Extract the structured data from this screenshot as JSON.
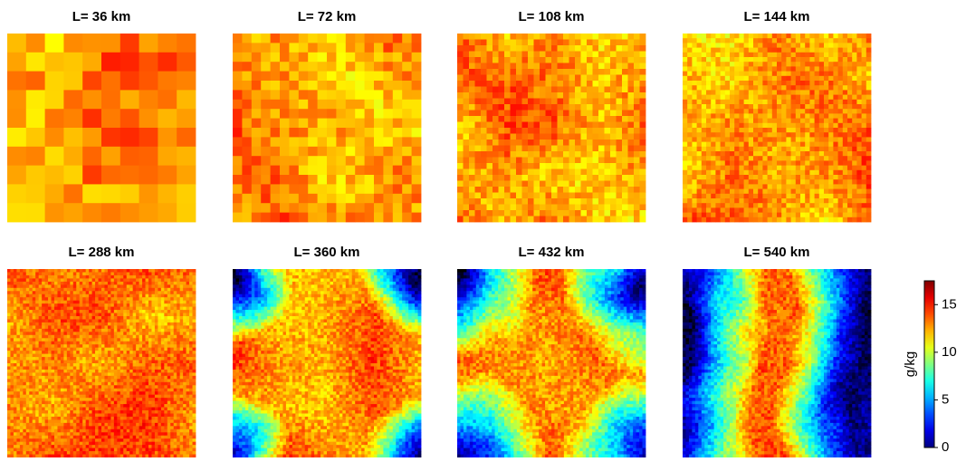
{
  "panels": [
    {
      "title": "L= 36  km"
    },
    {
      "title": "L= 72  km"
    },
    {
      "title": "L= 108  km"
    },
    {
      "title": "L= 144  km"
    },
    {
      "title": "L= 288  km"
    },
    {
      "title": "L= 360  km"
    },
    {
      "title": "L= 432  km"
    },
    {
      "title": "L= 540  km"
    }
  ],
  "colorbar": {
    "label": "g/kg",
    "clim": [
      0,
      17.5
    ],
    "ticks": [
      0,
      5,
      10,
      15
    ]
  }
}
